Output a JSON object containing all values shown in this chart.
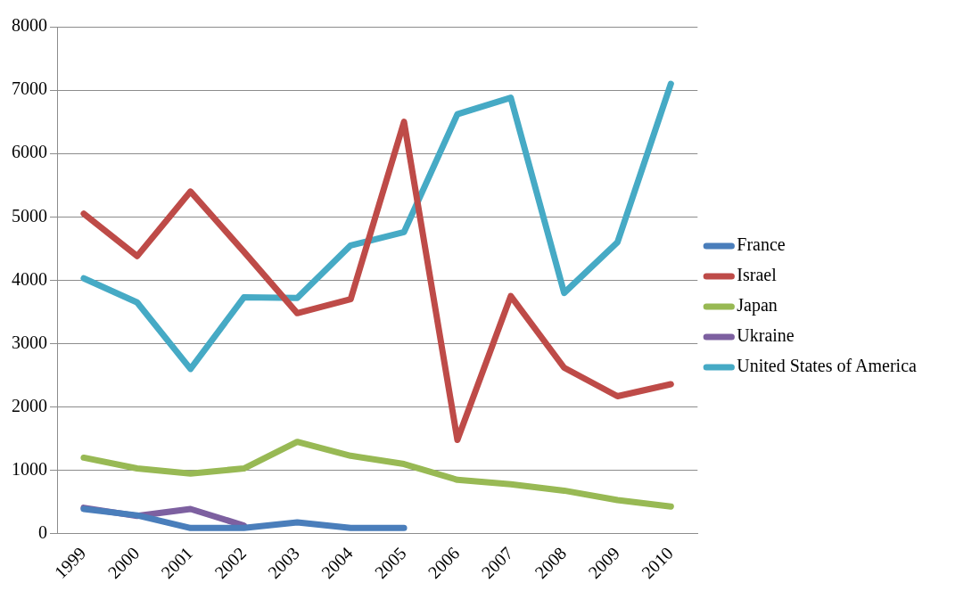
{
  "chart_data": {
    "type": "line",
    "categories": [
      "1999",
      "2000",
      "2001",
      "2002",
      "2003",
      "2004",
      "2005",
      "2006",
      "2007",
      "2008",
      "2009",
      "2010"
    ],
    "series": [
      {
        "name": "France",
        "color": "#4a7ebb",
        "values": [
          390,
          290,
          90,
          90,
          180,
          90,
          90,
          null,
          null,
          null,
          null,
          null
        ]
      },
      {
        "name": "Israel",
        "color": "#be4b48",
        "values": [
          5050,
          4380,
          5400,
          4450,
          3480,
          3700,
          6500,
          1480,
          3750,
          2620,
          2170,
          2360
        ]
      },
      {
        "name": "Japan",
        "color": "#98b954",
        "values": [
          1200,
          1030,
          950,
          1030,
          1450,
          1230,
          1100,
          850,
          780,
          680,
          530,
          430
        ]
      },
      {
        "name": "Ukraine",
        "color": "#7d60a0",
        "values": [
          410,
          280,
          390,
          130,
          null,
          null,
          null,
          null,
          null,
          null,
          null,
          null
        ]
      },
      {
        "name": "United States of America",
        "color": "#46aac5",
        "values": [
          4030,
          3650,
          2600,
          3730,
          3720,
          4550,
          4760,
          6620,
          6880,
          3800,
          4600,
          7100
        ]
      }
    ],
    "ylim": [
      0,
      8000
    ],
    "yticks": [
      0,
      1000,
      2000,
      3000,
      4000,
      5000,
      6000,
      7000,
      8000
    ],
    "grid": "y",
    "legend": "right",
    "marker": "none",
    "line_style": "solid"
  }
}
